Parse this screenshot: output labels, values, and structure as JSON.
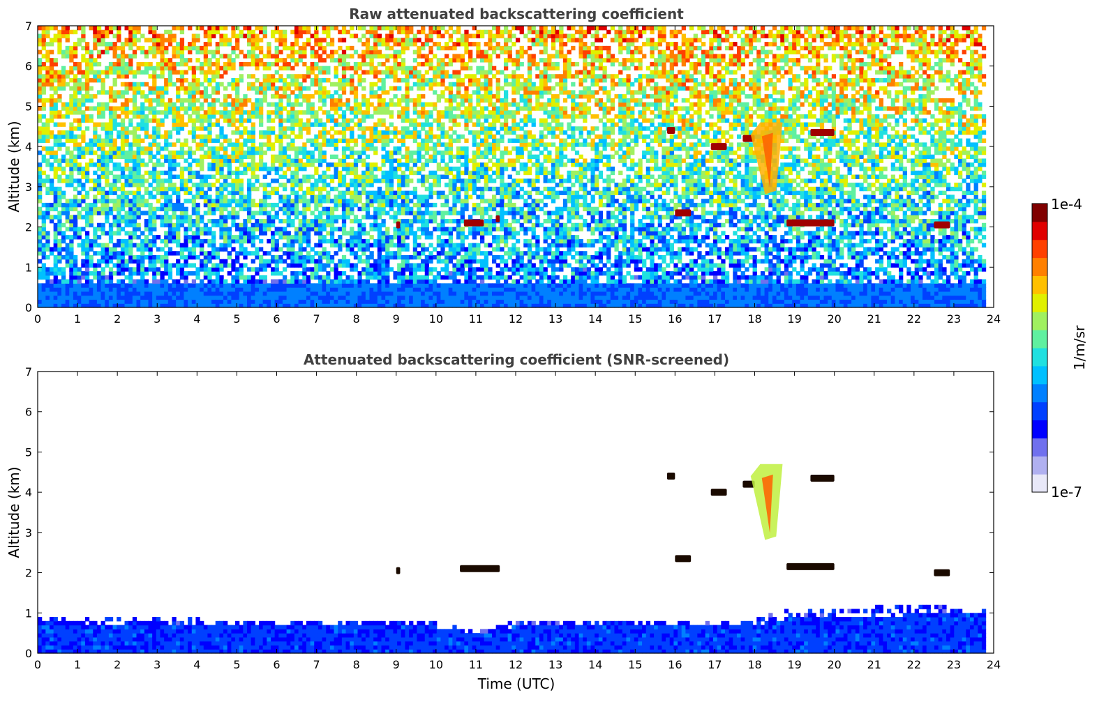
{
  "chart_data": [
    {
      "type": "heatmap",
      "title": "Raw attenuated backscattering coefficient",
      "xlabel": "",
      "ylabel": "Altitude (km)",
      "xlim": [
        0,
        24
      ],
      "ylim": [
        0,
        7
      ],
      "xticks": [
        "0",
        "1",
        "2",
        "3",
        "4",
        "5",
        "6",
        "7",
        "8",
        "9",
        "10",
        "11",
        "12",
        "13",
        "14",
        "15",
        "16",
        "17",
        "18",
        "19",
        "20",
        "21",
        "22",
        "23",
        "24"
      ],
      "yticks": [
        "0",
        "1",
        "2",
        "3",
        "4",
        "5",
        "6",
        "7"
      ],
      "data_end_time": 23.8,
      "colormap": "jet",
      "features": [
        {
          "kind": "boundary-layer",
          "t_start": 0,
          "t_end": 23.8,
          "alt_top": 0.6
        },
        {
          "kind": "cloud",
          "t_start": 10.7,
          "t_end": 11.2,
          "alt": 2.1
        },
        {
          "kind": "cloud",
          "t_start": 11.5,
          "t_end": 11.6,
          "alt": 2.2
        },
        {
          "kind": "cloud",
          "t_start": 9.0,
          "t_end": 9.1,
          "alt": 2.05
        },
        {
          "kind": "cloud",
          "t_start": 15.8,
          "t_end": 16.0,
          "alt": 4.4
        },
        {
          "kind": "cloud",
          "t_start": 16.0,
          "t_end": 16.4,
          "alt": 2.35
        },
        {
          "kind": "cloud",
          "t_start": 16.9,
          "t_end": 17.3,
          "alt": 4.0
        },
        {
          "kind": "cloud",
          "t_start": 17.7,
          "t_end": 18.0,
          "alt": 4.2
        },
        {
          "kind": "virga",
          "t_start": 17.9,
          "t_end": 18.7,
          "alt_top": 4.6,
          "alt_bottom": 2.9
        },
        {
          "kind": "cloud",
          "t_start": 19.4,
          "t_end": 20.0,
          "alt": 4.35
        },
        {
          "kind": "cloud",
          "t_start": 18.8,
          "t_end": 20.0,
          "alt": 2.1
        },
        {
          "kind": "cloud",
          "t_start": 22.5,
          "t_end": 22.9,
          "alt": 2.05
        }
      ]
    },
    {
      "type": "heatmap",
      "title": "Attenuated backscattering coefficient (SNR-screened)",
      "xlabel": "Time (UTC)",
      "ylabel": "Altitude (km)",
      "xlim": [
        0,
        24
      ],
      "ylim": [
        0,
        7
      ],
      "xticks": [
        "0",
        "1",
        "2",
        "3",
        "4",
        "5",
        "6",
        "7",
        "8",
        "9",
        "10",
        "11",
        "12",
        "13",
        "14",
        "15",
        "16",
        "17",
        "18",
        "19",
        "20",
        "21",
        "22",
        "23",
        "24"
      ],
      "yticks": [
        "0",
        "1",
        "2",
        "3",
        "4",
        "5",
        "6",
        "7"
      ],
      "data_end_time": 23.8,
      "colormap": "jet",
      "boundary_layer_top": [
        {
          "t": 0,
          "alt": 0.9
        },
        {
          "t": 2,
          "alt": 0.85
        },
        {
          "t": 4,
          "alt": 0.8
        },
        {
          "t": 6,
          "alt": 0.8
        },
        {
          "t": 8,
          "alt": 0.8
        },
        {
          "t": 10,
          "alt": 0.75
        },
        {
          "t": 11,
          "alt": 0.5
        },
        {
          "t": 12,
          "alt": 0.8
        },
        {
          "t": 14,
          "alt": 0.8
        },
        {
          "t": 16,
          "alt": 0.75
        },
        {
          "t": 18,
          "alt": 0.8
        },
        {
          "t": 19,
          "alt": 1.1
        },
        {
          "t": 21,
          "alt": 1.1
        },
        {
          "t": 23.8,
          "alt": 1.2
        }
      ],
      "features": [
        {
          "kind": "cloud",
          "t_start": 10.6,
          "t_end": 11.6,
          "alt": 2.1
        },
        {
          "kind": "cloud",
          "t_start": 9.0,
          "t_end": 9.1,
          "alt": 2.05
        },
        {
          "kind": "cloud",
          "t_start": 15.8,
          "t_end": 16.0,
          "alt": 4.4
        },
        {
          "kind": "cloud",
          "t_start": 16.0,
          "t_end": 16.4,
          "alt": 2.35
        },
        {
          "kind": "cloud",
          "t_start": 16.9,
          "t_end": 17.3,
          "alt": 4.0
        },
        {
          "kind": "cloud",
          "t_start": 17.7,
          "t_end": 18.0,
          "alt": 4.2
        },
        {
          "kind": "virga",
          "t_start": 17.9,
          "t_end": 18.7,
          "alt_top": 4.7,
          "alt_bottom": 2.9
        },
        {
          "kind": "cloud",
          "t_start": 19.4,
          "t_end": 20.0,
          "alt": 4.35
        },
        {
          "kind": "cloud",
          "t_start": 18.8,
          "t_end": 20.0,
          "alt": 2.15
        },
        {
          "kind": "cloud",
          "t_start": 22.5,
          "t_end": 22.9,
          "alt": 2.0
        }
      ]
    }
  ],
  "colorbar": {
    "max_label": "1e-4",
    "min_label": "1e-7",
    "unit_label": "1/m/sr",
    "colors": [
      "#e8e8f8",
      "#b0b0f0",
      "#7070ee",
      "#0000ff",
      "#0040ff",
      "#0080ff",
      "#00c0ff",
      "#20e0e0",
      "#60f0a0",
      "#a0f060",
      "#e0f000",
      "#ffc000",
      "#ff8000",
      "#ff4000",
      "#e00000",
      "#800000"
    ]
  }
}
